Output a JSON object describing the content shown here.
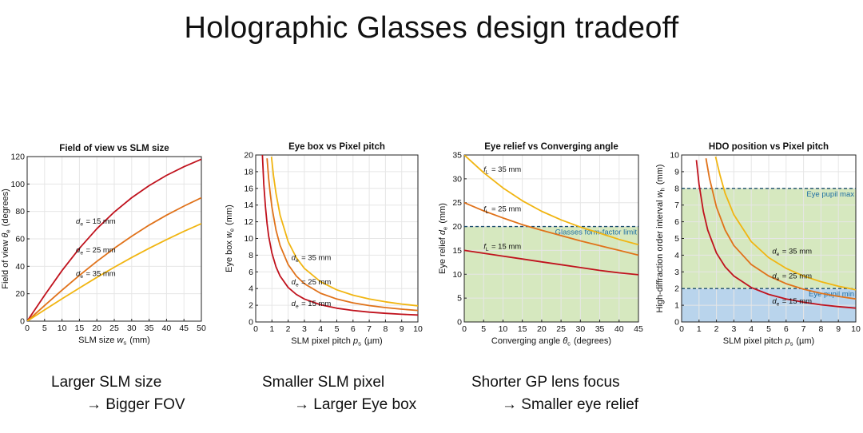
{
  "slide": {
    "title": "Holographic Glasses design tradeoff"
  },
  "captions": [
    {
      "line1": "Larger SLM size",
      "line2": "→ Bigger FOV"
    },
    {
      "line1": "Smaller SLM pixel",
      "line2": "→ Larger Eye box"
    },
    {
      "line1": "Shorter GP lens focus",
      "line2": "→ Smaller eye relief"
    }
  ],
  "chart_data": [
    {
      "type": "line",
      "title": "Field of view vs SLM size",
      "xlabel": "SLM size w_s (mm)",
      "ylabel": "Field of view θ_e (degrees)",
      "xlim": [
        0,
        50
      ],
      "ylim": [
        0,
        120
      ],
      "xticks": [
        0,
        5,
        10,
        15,
        20,
        25,
        30,
        35,
        40,
        45,
        50
      ],
      "yticks": [
        0,
        20,
        40,
        60,
        80,
        100,
        120
      ],
      "grid": true,
      "series": [
        {
          "name": "d_e = 15 mm",
          "color": "#c0121d",
          "x": [
            0,
            5,
            10,
            15,
            20,
            25,
            30,
            35,
            40,
            45,
            50
          ],
          "y": [
            0,
            18.9,
            36.9,
            53.1,
            67.4,
            79.6,
            90.0,
            98.8,
            106.3,
            112.6,
            118.1
          ],
          "label": {
            "x": 14,
            "y": 71
          }
        },
        {
          "name": "d_e = 25 mm",
          "color": "#e0721a",
          "x": [
            0,
            5,
            10,
            15,
            20,
            25,
            30,
            35,
            40,
            45,
            50
          ],
          "y": [
            0,
            11.4,
            22.6,
            33.4,
            43.6,
            53.1,
            61.9,
            70.0,
            77.3,
            83.9,
            90.0
          ],
          "label": {
            "x": 14,
            "y": 50
          }
        },
        {
          "name": "d_e = 35 mm",
          "color": "#f1b511",
          "x": [
            0,
            5,
            10,
            15,
            20,
            25,
            30,
            35,
            40,
            45,
            50
          ],
          "y": [
            0,
            8.2,
            16.3,
            24.2,
            31.9,
            39.3,
            46.4,
            53.1,
            59.5,
            65.5,
            71.1
          ],
          "label": {
            "x": 14,
            "y": 33
          }
        }
      ]
    },
    {
      "type": "line",
      "title": "Eye box vs Pixel pitch",
      "xlabel": "SLM pixel pitch p_s (µm)",
      "ylabel": "Eye box w_e (mm)",
      "xlim": [
        0,
        10
      ],
      "ylim": [
        0,
        20
      ],
      "xticks": [
        0,
        1,
        2,
        3,
        4,
        5,
        6,
        7,
        8,
        9,
        10
      ],
      "yticks": [
        0,
        2,
        4,
        6,
        8,
        10,
        12,
        14,
        16,
        18,
        20
      ],
      "grid": true,
      "series": [
        {
          "name": "d_e = 15 mm",
          "color": "#c0121d",
          "x": [
            0.4,
            0.5,
            0.6,
            0.7,
            0.8,
            1,
            1.25,
            1.5,
            2,
            2.5,
            3,
            4,
            5,
            6,
            7,
            8,
            9,
            10
          ],
          "y": [
            20.6,
            16.5,
            13.8,
            11.8,
            10.3,
            8.25,
            6.6,
            5.5,
            4.13,
            3.3,
            2.75,
            2.06,
            1.65,
            1.38,
            1.18,
            1.03,
            0.92,
            0.83
          ],
          "label": {
            "x": 2.2,
            "y": 1.9
          }
        },
        {
          "name": "d_e = 25 mm",
          "color": "#e0721a",
          "x": [
            0.7,
            0.8,
            0.9,
            1,
            1.25,
            1.5,
            2,
            2.5,
            3,
            4,
            5,
            6,
            7,
            8,
            9,
            10
          ],
          "y": [
            19.6,
            17.2,
            15.3,
            13.75,
            11.0,
            9.17,
            6.88,
            5.5,
            4.58,
            3.44,
            2.75,
            2.29,
            1.96,
            1.72,
            1.53,
            1.38
          ],
          "label": {
            "x": 2.2,
            "y": 4.5
          }
        },
        {
          "name": "d_e = 35 mm",
          "color": "#f1b511",
          "x": [
            0.97,
            1.1,
            1.25,
            1.5,
            2,
            2.5,
            3,
            4,
            5,
            6,
            7,
            8,
            9,
            10
          ],
          "y": [
            19.8,
            17.5,
            15.4,
            12.8,
            9.63,
            7.7,
            6.42,
            4.81,
            3.85,
            3.21,
            2.75,
            2.41,
            2.14,
            1.93
          ],
          "label": {
            "x": 2.2,
            "y": 7.4
          }
        }
      ]
    },
    {
      "type": "line",
      "title": "Eye relief vs Converging angle",
      "xlabel": "Converging angle θ_c (degrees)",
      "ylabel": "Eye relief d_e (mm)",
      "xlim": [
        0,
        45
      ],
      "ylim": [
        0,
        35
      ],
      "xticks": [
        0,
        5,
        10,
        15,
        20,
        25,
        30,
        35,
        40,
        45
      ],
      "yticks": [
        0,
        5,
        10,
        15,
        20,
        25,
        30,
        35
      ],
      "grid": true,
      "shaded_region": {
        "y0": 0,
        "y1": 20,
        "color": "#d6e8bf"
      },
      "hline": {
        "y": 20,
        "label": "Glasses form-factor limit"
      },
      "series": [
        {
          "name": "f_L = 35 mm",
          "color": "#f1b511",
          "x": [
            0,
            5,
            10,
            15,
            20,
            25,
            30,
            35,
            40,
            45
          ],
          "y": [
            35,
            31.3,
            28.1,
            25.4,
            23.2,
            21.4,
            19.9,
            18.6,
            17.3,
            16.2
          ],
          "label": {
            "x": 5,
            "y": 31.5
          }
        },
        {
          "name": "f_L = 25 mm",
          "color": "#e0721a",
          "x": [
            0,
            5,
            10,
            15,
            20,
            25,
            30,
            35,
            40,
            45
          ],
          "y": [
            25,
            23.3,
            21.8,
            20.4,
            19.2,
            18.1,
            17.0,
            16.0,
            15.0,
            14.0
          ],
          "label": {
            "x": 5,
            "y": 23.2
          }
        },
        {
          "name": "f_L = 15 mm",
          "color": "#c0121d",
          "x": [
            0,
            5,
            10,
            15,
            20,
            25,
            30,
            35,
            40,
            45
          ],
          "y": [
            15,
            14.4,
            13.8,
            13.2,
            12.6,
            12.0,
            11.4,
            10.8,
            10.3,
            9.9
          ],
          "label": {
            "x": 5,
            "y": 15.3
          }
        }
      ]
    },
    {
      "type": "line",
      "title": "HDO position vs Pixel pitch",
      "xlabel": "SLM pixel pitch p_s (µm)",
      "ylabel": "High-diffraction order interval w_h (mm)",
      "xlim": [
        0,
        10
      ],
      "ylim": [
        0,
        10
      ],
      "xticks": [
        0,
        1,
        2,
        3,
        4,
        5,
        6,
        7,
        8,
        9,
        10
      ],
      "yticks": [
        0,
        1,
        2,
        3,
        4,
        5,
        6,
        7,
        8,
        9,
        10
      ],
      "grid": true,
      "bands": [
        {
          "y0": 0,
          "y1": 2,
          "color": "#b9d4ec"
        },
        {
          "y0": 2,
          "y1": 8,
          "color": "#d6e8bf"
        }
      ],
      "hlines": [
        {
          "y": 8,
          "label": "Eye pupil max"
        },
        {
          "y": 2,
          "label": "Eye pupil min"
        }
      ],
      "series": [
        {
          "name": "d_e = 15 mm",
          "color": "#c0121d",
          "x": [
            0.85,
            1,
            1.25,
            1.5,
            2,
            2.5,
            3,
            4,
            5,
            6,
            7,
            8,
            9,
            10
          ],
          "y": [
            9.7,
            8.25,
            6.6,
            5.5,
            4.13,
            3.3,
            2.75,
            2.06,
            1.65,
            1.38,
            1.18,
            1.03,
            0.92,
            0.83
          ],
          "label": {
            "x": 5.2,
            "y": 1.1
          }
        },
        {
          "name": "d_e = 25 mm",
          "color": "#e0721a",
          "x": [
            1.4,
            1.6,
            2,
            2.5,
            3,
            4,
            5,
            6,
            7,
            8,
            9,
            10
          ],
          "y": [
            9.8,
            8.6,
            6.88,
            5.5,
            4.58,
            3.44,
            2.75,
            2.29,
            1.96,
            1.72,
            1.53,
            1.38
          ],
          "label": {
            "x": 5.2,
            "y": 2.6
          }
        },
        {
          "name": "d_e = 35 mm",
          "color": "#f1b511",
          "x": [
            1.95,
            2.2,
            2.5,
            3,
            4,
            5,
            6,
            7,
            8,
            9,
            10
          ],
          "y": [
            9.9,
            8.8,
            7.7,
            6.42,
            4.81,
            3.85,
            3.21,
            2.75,
            2.41,
            2.14,
            1.93
          ],
          "label": {
            "x": 5.2,
            "y": 4.1
          }
        }
      ]
    }
  ]
}
